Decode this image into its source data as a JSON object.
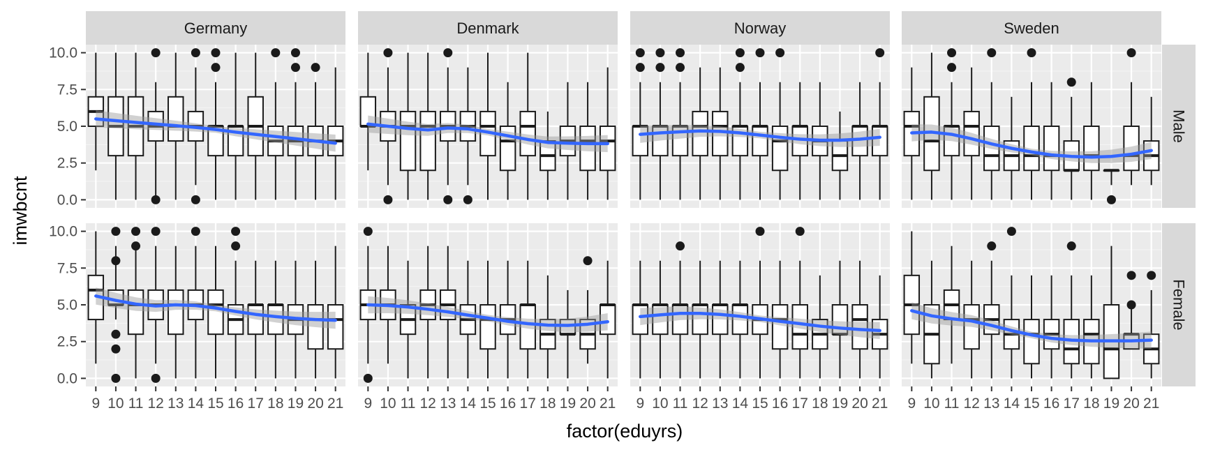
{
  "chart_data": {
    "type": "box",
    "x_title": "factor(eduyrs)",
    "y_title": "imwbcnt",
    "x_categories": [
      "9",
      "10",
      "11",
      "12",
      "13",
      "14",
      "15",
      "16",
      "17",
      "18",
      "19",
      "20",
      "21"
    ],
    "y_ticks": [
      "0.0",
      "2.5",
      "5.0",
      "7.5",
      "10.0"
    ],
    "y_tick_values": [
      0,
      2.5,
      5,
      7.5,
      10
    ],
    "ylim": [
      -0.55,
      10.55
    ],
    "columns": [
      "Germany",
      "Denmark",
      "Norway",
      "Sweden"
    ],
    "rows": [
      "Male",
      "Female"
    ],
    "smoother_color": "#3366FF",
    "panels": [
      {
        "country": "Germany",
        "gender": "Male",
        "boxes": [
          [
            2,
            5,
            6,
            7,
            10
          ],
          [
            0,
            3,
            5,
            7,
            10
          ],
          [
            0,
            3,
            5,
            7,
            10
          ],
          [
            0,
            4,
            5,
            6,
            8
          ],
          [
            0,
            4,
            5,
            7,
            10
          ],
          [
            1,
            4,
            5,
            6,
            9
          ],
          [
            0,
            3,
            5,
            5,
            8
          ],
          [
            0,
            3,
            5,
            5,
            10
          ],
          [
            0,
            3,
            5,
            7,
            10
          ],
          [
            0,
            3,
            4,
            5,
            8
          ],
          [
            0,
            3,
            4,
            5,
            8
          ],
          [
            0,
            3,
            4,
            5,
            8
          ],
          [
            0,
            3,
            4,
            5,
            9
          ]
        ],
        "outliers": [
          [],
          [],
          [],
          [
            0,
            10
          ],
          [],
          [
            0,
            10
          ],
          [
            9,
            10
          ],
          [],
          [],
          [
            10
          ],
          [
            9,
            10
          ],
          [
            9
          ],
          []
        ],
        "smooth": [
          5.5,
          5.38,
          5.26,
          5.15,
          5.04,
          4.92,
          4.78,
          4.6,
          4.45,
          4.3,
          4.15,
          4.0,
          3.85
        ]
      },
      {
        "country": "Denmark",
        "gender": "Male",
        "boxes": [
          [
            2,
            5,
            5,
            7,
            10
          ],
          [
            1,
            4,
            5,
            6,
            9
          ],
          [
            0,
            2,
            5,
            6,
            10
          ],
          [
            0,
            2,
            5,
            6,
            10
          ],
          [
            1,
            4,
            5,
            6,
            9
          ],
          [
            1,
            4,
            5,
            6,
            9
          ],
          [
            0,
            3,
            5,
            6,
            10
          ],
          [
            0,
            2,
            4,
            5,
            8
          ],
          [
            0,
            3,
            5,
            6,
            10
          ],
          [
            0,
            2,
            3,
            4,
            6
          ],
          [
            0,
            3,
            4,
            5,
            8
          ],
          [
            0,
            2,
            4,
            5,
            8
          ],
          [
            0,
            2,
            4,
            5,
            9
          ]
        ],
        "outliers": [
          [],
          [
            0,
            10
          ],
          [],
          [],
          [
            0,
            10
          ],
          [
            0
          ],
          [],
          [],
          [],
          [],
          [],
          [],
          []
        ],
        "smooth": [
          5.15,
          5.0,
          4.85,
          4.75,
          4.88,
          4.82,
          4.6,
          4.35,
          4.1,
          3.9,
          3.85,
          3.82,
          3.82
        ]
      },
      {
        "country": "Norway",
        "gender": "Male",
        "boxes": [
          [
            0,
            3,
            5,
            5,
            8
          ],
          [
            0,
            3,
            5,
            5,
            8
          ],
          [
            0,
            3,
            5,
            5,
            8
          ],
          [
            0,
            3,
            5,
            6,
            9
          ],
          [
            0,
            3,
            5,
            6,
            9
          ],
          [
            0,
            3,
            5,
            5,
            8
          ],
          [
            0,
            3,
            5,
            5,
            8
          ],
          [
            0,
            2,
            4,
            5,
            8
          ],
          [
            0,
            3,
            5,
            5,
            8
          ],
          [
            0,
            3,
            4,
            5,
            8
          ],
          [
            0,
            2,
            3,
            4,
            6
          ],
          [
            0,
            3,
            5,
            5,
            8
          ],
          [
            0,
            3,
            5,
            5,
            8
          ]
        ],
        "outliers": [
          [
            9,
            10
          ],
          [
            9,
            10
          ],
          [
            9,
            10
          ],
          [],
          [],
          [
            9,
            10
          ],
          [
            10
          ],
          [
            10
          ],
          [],
          [],
          [],
          [],
          [
            10
          ]
        ],
        "smooth": [
          4.45,
          4.55,
          4.62,
          4.68,
          4.65,
          4.55,
          4.4,
          4.25,
          4.12,
          4.05,
          4.05,
          4.12,
          4.25
        ]
      },
      {
        "country": "Sweden",
        "gender": "Male",
        "boxes": [
          [
            0,
            3,
            5,
            6,
            9
          ],
          [
            0,
            2,
            4,
            7,
            10
          ],
          [
            0,
            3,
            5,
            5,
            8
          ],
          [
            0,
            3,
            5,
            6,
            9
          ],
          [
            0,
            2,
            3,
            5,
            8
          ],
          [
            0,
            2,
            3,
            4,
            7
          ],
          [
            0,
            2,
            3,
            5,
            8
          ],
          [
            0,
            2,
            3,
            5,
            8
          ],
          [
            0,
            2,
            2,
            4,
            7
          ],
          [
            0,
            2,
            3,
            5,
            8
          ],
          [
            1,
            2,
            2,
            2,
            2
          ],
          [
            1,
            2,
            3,
            5,
            8
          ],
          [
            1,
            2,
            3,
            4,
            7
          ]
        ],
        "outliers": [
          [],
          [],
          [
            9,
            10
          ],
          [],
          [
            10
          ],
          [],
          [
            10
          ],
          [],
          [
            8
          ],
          [],
          [
            0
          ],
          [
            10
          ],
          []
        ],
        "smooth": [
          4.55,
          4.6,
          4.45,
          4.15,
          3.8,
          3.5,
          3.25,
          3.05,
          2.95,
          2.9,
          2.95,
          3.1,
          3.35
        ]
      },
      {
        "country": "Germany",
        "gender": "Female",
        "boxes": [
          [
            1,
            4,
            6,
            7,
            10
          ],
          [
            4,
            5,
            5,
            6,
            9
          ],
          [
            0,
            3,
            5,
            6,
            9
          ],
          [
            1,
            4,
            5,
            6,
            9
          ],
          [
            0,
            3,
            5,
            6,
            9
          ],
          [
            0,
            4,
            5,
            6,
            9
          ],
          [
            0,
            3,
            5,
            6,
            9
          ],
          [
            0,
            3,
            4,
            5,
            8
          ],
          [
            0,
            3,
            5,
            5,
            8
          ],
          [
            0,
            3,
            5,
            5,
            8
          ],
          [
            0,
            3,
            4,
            5,
            8
          ],
          [
            0,
            2,
            4,
            5,
            8
          ],
          [
            0,
            2,
            4,
            5,
            9
          ]
        ],
        "outliers": [
          [],
          [
            0,
            2,
            3,
            8,
            10
          ],
          [
            9,
            10
          ],
          [
            0,
            10
          ],
          [],
          [
            10
          ],
          [],
          [
            9,
            10
          ],
          [],
          [],
          [],
          [],
          []
        ],
        "smooth": [
          5.6,
          5.3,
          5.05,
          4.92,
          5.0,
          4.95,
          4.78,
          4.55,
          4.35,
          4.2,
          4.08,
          4.0,
          3.95
        ]
      },
      {
        "country": "Denmark",
        "gender": "Female",
        "boxes": [
          [
            1,
            4,
            5,
            6,
            9
          ],
          [
            1,
            4,
            5,
            6,
            9
          ],
          [
            0,
            3,
            4,
            5,
            8
          ],
          [
            0,
            4,
            5,
            6,
            9
          ],
          [
            0,
            4,
            5,
            6,
            9
          ],
          [
            0,
            3,
            4,
            5,
            8
          ],
          [
            0,
            2,
            4,
            5,
            8
          ],
          [
            0,
            3,
            4,
            5,
            8
          ],
          [
            0,
            2,
            5,
            5,
            8
          ],
          [
            0,
            2,
            3,
            4,
            7
          ],
          [
            0,
            3,
            3,
            4,
            6
          ],
          [
            1,
            2,
            3,
            4,
            6
          ],
          [
            0,
            3,
            5,
            5,
            8
          ]
        ],
        "outliers": [
          [
            0,
            10
          ],
          [],
          [],
          [],
          [],
          [],
          [],
          [],
          [],
          [],
          [],
          [
            8
          ],
          []
        ],
        "smooth": [
          5.0,
          4.95,
          4.85,
          4.7,
          4.52,
          4.3,
          4.1,
          3.88,
          3.72,
          3.62,
          3.6,
          3.68,
          3.85
        ]
      },
      {
        "country": "Norway",
        "gender": "Female",
        "boxes": [
          [
            0,
            3,
            5,
            5,
            8
          ],
          [
            0,
            3,
            5,
            5,
            8
          ],
          [
            0,
            3,
            5,
            5,
            8
          ],
          [
            0,
            3,
            5,
            5,
            8
          ],
          [
            0,
            3,
            5,
            5,
            8
          ],
          [
            0,
            3,
            5,
            5,
            8
          ],
          [
            0,
            3,
            4,
            5,
            8
          ],
          [
            0,
            2,
            4,
            5,
            8
          ],
          [
            0,
            2,
            3,
            5,
            8
          ],
          [
            0,
            2,
            3,
            4,
            7
          ],
          [
            0,
            3,
            3,
            5,
            8
          ],
          [
            0,
            2,
            4,
            5,
            8
          ],
          [
            0,
            2,
            3,
            4,
            7
          ]
        ],
        "outliers": [
          [],
          [],
          [
            9
          ],
          [],
          [],
          [],
          [
            10
          ],
          [],
          [
            10
          ],
          [],
          [],
          [],
          []
        ],
        "smooth": [
          4.2,
          4.32,
          4.42,
          4.42,
          4.35,
          4.22,
          4.05,
          3.88,
          3.72,
          3.55,
          3.42,
          3.32,
          3.25
        ]
      },
      {
        "country": "Sweden",
        "gender": "Female",
        "boxes": [
          [
            1,
            3,
            5,
            7,
            10
          ],
          [
            0,
            1,
            3,
            5,
            8
          ],
          [
            1,
            4,
            5,
            6,
            9
          ],
          [
            0,
            2,
            4,
            5,
            8
          ],
          [
            0,
            3,
            4,
            5,
            8
          ],
          [
            0,
            2,
            3,
            4,
            7
          ],
          [
            0,
            1,
            3,
            4,
            7
          ],
          [
            0,
            2,
            3,
            4,
            7
          ],
          [
            0,
            1,
            2,
            4,
            7
          ],
          [
            0,
            1,
            3,
            4,
            7
          ],
          [
            0,
            0,
            2,
            5,
            9
          ],
          [
            2,
            2,
            3,
            3,
            5
          ],
          [
            0,
            1,
            2,
            3,
            6
          ]
        ],
        "outliers": [
          [],
          [],
          [],
          [],
          [
            9
          ],
          [
            10
          ],
          [],
          [],
          [
            9
          ],
          [],
          [],
          [
            5,
            7
          ],
          [
            7
          ]
        ],
        "smooth": [
          4.6,
          4.25,
          4.05,
          3.9,
          3.6,
          3.25,
          2.95,
          2.72,
          2.6,
          2.55,
          2.55,
          2.55,
          2.6
        ]
      }
    ]
  }
}
